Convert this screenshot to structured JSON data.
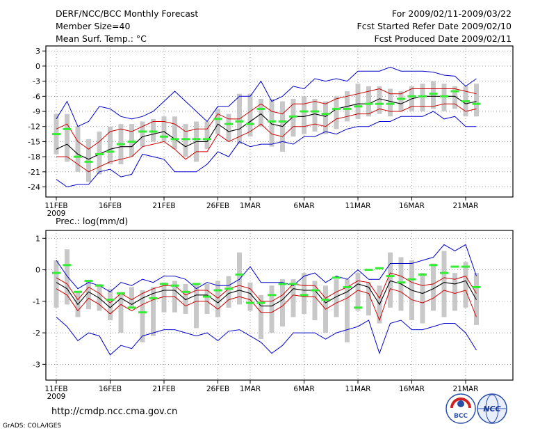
{
  "header": {
    "title": "DERF/NCC/BCC Monthly Forecast",
    "member_size": "Member Size=40",
    "variable": "Mean Surf. Temp.: °C",
    "forecast_period": "For 2009/02/11-2009/03/22",
    "started_date": "Fcst Started Refer Date 2009/02/10",
    "produced_date": "Fcst Produced Date 2009/02/11"
  },
  "footer": {
    "url": "http://cmdp.ncc.cma.gov.cn",
    "credit": "GrADS: COLA/IGES",
    "logo1_text": "BCC",
    "logo2_text": "NCC"
  },
  "colors": {
    "ensemble_mean": "#000000",
    "std_band": "#cc0000",
    "extreme_range": "#0000cc",
    "member_bar": "#c8c8c8",
    "climatology": "#33ee33",
    "grid": "#888888"
  },
  "chart_data": [
    {
      "type": "line",
      "title": "Mean Surf. Temp.: °C",
      "x_start": "2009-02-11",
      "x_days": 40,
      "xtick_day_index": [
        0,
        5,
        10,
        15,
        18,
        23,
        28,
        33,
        38
      ],
      "xtick_labels": [
        "11FEB",
        "16FEB",
        "21FEB",
        "26FEB",
        "1MAR",
        "6MAR",
        "11MAR",
        "16MAR",
        "21MAR"
      ],
      "xtick_year": "2009",
      "ylim": [
        -26,
        4
      ],
      "yticks": [
        3,
        0,
        -3,
        -6,
        -9,
        -12,
        -15,
        -18,
        -21,
        -24
      ],
      "ytick_labels": [
        "3",
        "0",
        "-3",
        "-6",
        "-9",
        "-12",
        "-15",
        "-18",
        "-21",
        "-24"
      ],
      "series": [
        {
          "name": "max",
          "values": [
            -10.5,
            -7,
            -12,
            -11,
            -8,
            -8.5,
            -10,
            -10.5,
            -10,
            -9,
            -7,
            -5,
            -7,
            -9,
            -11,
            -8,
            -8,
            -6,
            -6,
            -3,
            -7,
            -6,
            -4,
            -4.5,
            -2.5,
            -3,
            -2.5,
            -3,
            -1,
            -1,
            -1,
            -0.2,
            -1,
            -1,
            -1,
            -1.2,
            -1.8,
            -2,
            -4,
            -2.5
          ]
        },
        {
          "name": "plus_std",
          "values": [
            -12.5,
            -11.5,
            -15,
            -16.5,
            -15,
            -13,
            -12.5,
            -13,
            -12,
            -11,
            -11,
            -11.5,
            -13,
            -12.5,
            -12.5,
            -9.5,
            -10.5,
            -10.5,
            -9,
            -7.5,
            -9,
            -9.5,
            -7.5,
            -7.5,
            -7,
            -7.5,
            -6.5,
            -6,
            -5.5,
            -5,
            -4.5,
            -5.5,
            -5.5,
            -4.5,
            -4.5,
            -4.5,
            -4.5,
            -4.5,
            -5,
            -5.5
          ]
        },
        {
          "name": "mean",
          "values": [
            -16.5,
            -15.5,
            -17.5,
            -18.5,
            -17.5,
            -16.5,
            -16,
            -16,
            -14,
            -13.5,
            -13,
            -14.5,
            -16,
            -15,
            -15,
            -11.5,
            -13,
            -12.5,
            -11,
            -9.5,
            -11.5,
            -12,
            -10,
            -10,
            -9.5,
            -10,
            -8.5,
            -8,
            -7.5,
            -7.5,
            -6.5,
            -7,
            -7.5,
            -6.5,
            -6,
            -6,
            -6,
            -6,
            -7.5,
            -7
          ]
        },
        {
          "name": "minus_std",
          "values": [
            -18,
            -18,
            -19.5,
            -21,
            -20,
            -19,
            -18.5,
            -18,
            -16,
            -15.5,
            -15,
            -16.5,
            -18.5,
            -17,
            -17,
            -13.5,
            -15,
            -14,
            -13,
            -11.5,
            -13.5,
            -14,
            -12,
            -12,
            -11.5,
            -12,
            -10.5,
            -10,
            -9.5,
            -9.5,
            -8.5,
            -9,
            -9,
            -8,
            -8,
            -8,
            -7.5,
            -7.5,
            -9,
            -8.5
          ]
        },
        {
          "name": "min",
          "values": [
            -22.5,
            -24,
            -23.5,
            -23.5,
            -21,
            -20.5,
            -22,
            -21.5,
            -17.5,
            -18,
            -18.5,
            -21,
            -21,
            -21,
            -19.5,
            -17,
            -18,
            -15,
            -16,
            -15.5,
            -15.5,
            -15,
            -15.5,
            -14,
            -14,
            -13,
            -13.5,
            -12.5,
            -12,
            -12,
            -11,
            -11,
            -10,
            -10,
            -10,
            -9,
            -10.5,
            -10,
            -12,
            -12
          ]
        },
        {
          "name": "bar_high",
          "values": [
            -9.5,
            -9.5,
            -12,
            -14.5,
            -13,
            -12,
            -11.5,
            -11.5,
            -11,
            -10.5,
            -10,
            -10,
            -11.5,
            -11,
            -11,
            -8.5,
            -9.5,
            -5.5,
            -5.5,
            -6.5,
            -6.5,
            -7,
            -6.5,
            -6,
            -6.5,
            -7,
            -6,
            -5,
            -3.5,
            -4,
            -4,
            -4.5,
            -5,
            -4,
            -3.5,
            -3,
            -3.5,
            -4,
            -4,
            -3.5
          ]
        },
        {
          "name": "bar_low",
          "values": [
            -17.5,
            -19,
            -21,
            -23,
            -21.5,
            -19.5,
            -19.5,
            -18,
            -16,
            -15,
            -15,
            -16.5,
            -18,
            -19,
            -16.5,
            -13.5,
            -15,
            -15.5,
            -14,
            -12,
            -16,
            -17,
            -14,
            -13.5,
            -13,
            -13.5,
            -12.5,
            -11,
            -10.5,
            -10,
            -9.5,
            -10,
            -9,
            -9,
            -9,
            -8.5,
            -9,
            -8.5,
            -10,
            -10
          ]
        },
        {
          "name": "climatology",
          "values": [
            -13.5,
            -12.5,
            -18,
            -19,
            -17.5,
            -17,
            -15.5,
            -15,
            -13,
            -13,
            -14,
            -14.5,
            -14.5,
            -14.5,
            -14.5,
            -10.5,
            -11.5,
            -11,
            -11.5,
            -8.5,
            -11,
            -11,
            -10,
            -9,
            -9,
            -9.5,
            -8.5,
            -8.5,
            -8,
            -7.5,
            -7.5,
            -7.5,
            -6.5,
            -6,
            -6,
            -5.5,
            -6,
            -5,
            -7,
            -7.5
          ]
        }
      ]
    },
    {
      "type": "line",
      "title": "Prec.: log(mm/d)",
      "x_start": "2009-02-11",
      "x_days": 40,
      "xtick_day_index": [
        0,
        5,
        10,
        15,
        18,
        23,
        28,
        33,
        38
      ],
      "xtick_labels": [
        "11FEB",
        "16FEB",
        "21FEB",
        "26FEB",
        "1MAR",
        "6MAR",
        "11MAR",
        "16MAR",
        "21MAR"
      ],
      "xtick_year": "2009",
      "ylim": [
        -3.5,
        1.25
      ],
      "yticks": [
        1,
        0,
        -1,
        -2,
        -3
      ],
      "ytick_labels": [
        "1",
        "0",
        "-1",
        "-2",
        "-3"
      ],
      "series": [
        {
          "name": "max",
          "values": [
            0.3,
            -0.2,
            -0.6,
            -0.4,
            -0.5,
            -0.7,
            -0.4,
            -0.5,
            -0.3,
            -0.4,
            -0.2,
            -0.2,
            -0.3,
            -0.6,
            -0.4,
            -0.5,
            -0.5,
            -0.3,
            0.1,
            -0.4,
            -0.4,
            -0.4,
            -0.5,
            -0.2,
            -0.1,
            -0.4,
            -0.2,
            -0.3,
            0,
            -0.3,
            -0.3,
            0.2,
            0.2,
            0.2,
            0.3,
            0.4,
            0.8,
            0.6,
            0.8,
            -0.2
          ]
        },
        {
          "name": "plus_std",
          "values": [
            -0.25,
            -0.45,
            -0.95,
            -0.55,
            -0.75,
            -1.05,
            -0.75,
            -0.95,
            -0.75,
            -0.6,
            -0.5,
            -0.5,
            -0.8,
            -0.65,
            -0.65,
            -0.9,
            -0.6,
            -0.5,
            -0.6,
            -1.0,
            -1.0,
            -0.8,
            -0.45,
            -0.5,
            -0.5,
            -0.9,
            -0.7,
            -0.55,
            -0.35,
            -0.4,
            -0.9,
            -0.1,
            -0.2,
            -0.4,
            -0.5,
            -0.45,
            -0.25,
            -0.3,
            -0.2,
            -0.75
          ]
        },
        {
          "name": "mean",
          "values": [
            -0.4,
            -0.6,
            -1.1,
            -0.7,
            -0.9,
            -1.2,
            -0.9,
            -1.1,
            -0.9,
            -0.75,
            -0.65,
            -0.65,
            -0.95,
            -0.8,
            -0.8,
            -1.05,
            -0.75,
            -0.65,
            -0.75,
            -1.15,
            -1.15,
            -0.95,
            -0.6,
            -0.65,
            -0.65,
            -1.05,
            -0.85,
            -0.7,
            -0.45,
            -0.55,
            -1.1,
            -0.35,
            -0.45,
            -0.65,
            -0.75,
            -0.6,
            -0.4,
            -0.45,
            -0.35,
            -0.95
          ]
        },
        {
          "name": "minus_std",
          "values": [
            -0.6,
            -0.8,
            -1.3,
            -0.9,
            -1.1,
            -1.4,
            -1.1,
            -1.3,
            -1.1,
            -0.95,
            -0.85,
            -0.85,
            -1.15,
            -1.0,
            -1.0,
            -1.25,
            -0.95,
            -0.85,
            -0.95,
            -1.35,
            -1.35,
            -1.15,
            -0.8,
            -0.85,
            -0.85,
            -1.25,
            -1.05,
            -0.9,
            -0.65,
            -0.75,
            -1.6,
            -0.6,
            -0.7,
            -0.95,
            -1.05,
            -0.9,
            -0.65,
            -0.75,
            -0.65,
            -1.5
          ]
        },
        {
          "name": "min",
          "values": [
            -1.5,
            -1.8,
            -2.25,
            -2.0,
            -2.1,
            -2.7,
            -2.4,
            -2.5,
            -2.1,
            -2.0,
            -1.9,
            -1.9,
            -2.0,
            -2.1,
            -2.0,
            -2.25,
            -1.95,
            -1.9,
            -2.1,
            -2.3,
            -2.65,
            -2.4,
            -2.0,
            -2.0,
            -2.0,
            -2.2,
            -2.0,
            -1.9,
            -1.8,
            -1.6,
            -2.65,
            -1.7,
            -1.6,
            -1.9,
            -1.9,
            -1.8,
            -1.7,
            -1.7,
            -2.0,
            -2.55
          ]
        },
        {
          "name": "bar_high",
          "values": [
            0.3,
            0.65,
            -0.7,
            -0.35,
            -0.45,
            -0.6,
            -0.7,
            -0.55,
            -0.65,
            -0.55,
            -0.4,
            -0.35,
            -0.45,
            -0.45,
            -0.45,
            -0.35,
            -0.2,
            0.55,
            -0.4,
            -0.8,
            -0.5,
            -0.3,
            -0.3,
            -0.1,
            -0.35,
            -0.5,
            -0.3,
            -0.3,
            -0.1,
            -0.4,
            -0.5,
            0.55,
            0.4,
            0.3,
            -0.1,
            0.2,
            0.6,
            -0.1,
            0.25,
            -0.1
          ]
        },
        {
          "name": "bar_low",
          "values": [
            -1.2,
            -1.1,
            -1.5,
            -1.25,
            -1.3,
            -1.6,
            -2.0,
            -1.2,
            -2.3,
            -2.1,
            -1.35,
            -1.35,
            -1.4,
            -1.85,
            -1.4,
            -1.5,
            -1.2,
            -1.1,
            -1.3,
            -2.2,
            -2.0,
            -1.8,
            -1.5,
            -1.4,
            -1.6,
            -2.0,
            -1.5,
            -2.3,
            -1.3,
            -1.45,
            -1.7,
            -1.2,
            -1.3,
            -1.6,
            -1.7,
            -1.3,
            -1.5,
            -1.3,
            -1.2,
            -1.75
          ]
        },
        {
          "name": "climatology",
          "values": [
            -0.1,
            0.15,
            -0.7,
            -0.35,
            -0.5,
            -0.95,
            -0.75,
            -1.2,
            -1.35,
            -0.9,
            -0.45,
            -0.5,
            -0.7,
            -0.45,
            -0.85,
            -0.65,
            -0.6,
            -0.15,
            -1.05,
            -1.05,
            -0.8,
            -0.45,
            -0.45,
            -0.8,
            -0.65,
            -0.95,
            -0.25,
            -0.55,
            -1.2,
            0,
            0.05,
            -0.2,
            -0.4,
            -0.3,
            -0.15,
            0.15,
            -0.1,
            0.1,
            0.1,
            -0.55
          ]
        }
      ]
    }
  ]
}
